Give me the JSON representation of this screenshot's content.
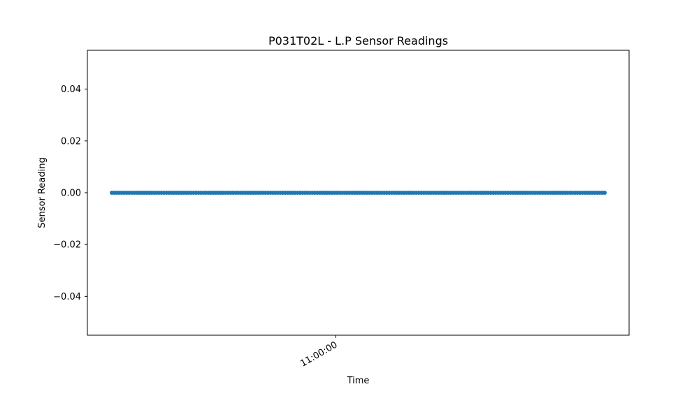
{
  "chart_data": {
    "type": "scatter",
    "title": "P031T02L - L.P Sensor Readings",
    "xlabel": "Time",
    "ylabel": "Sensor Reading",
    "ylim": [
      -0.055,
      0.055
    ],
    "y_ticks": [
      -0.04,
      -0.02,
      0.0,
      0.02,
      0.04
    ],
    "y_tick_labels": [
      "−0.04",
      "−0.02",
      "0.00",
      "0.02",
      "0.04"
    ],
    "x_ticks": [
      "11:00:00"
    ],
    "grid": false,
    "legend": "none",
    "x_start": "10:55:00",
    "x_end": "11:06:00",
    "point_count": 200,
    "point_value": 0.0,
    "series": [
      {
        "color": "#1f77b4"
      }
    ]
  }
}
